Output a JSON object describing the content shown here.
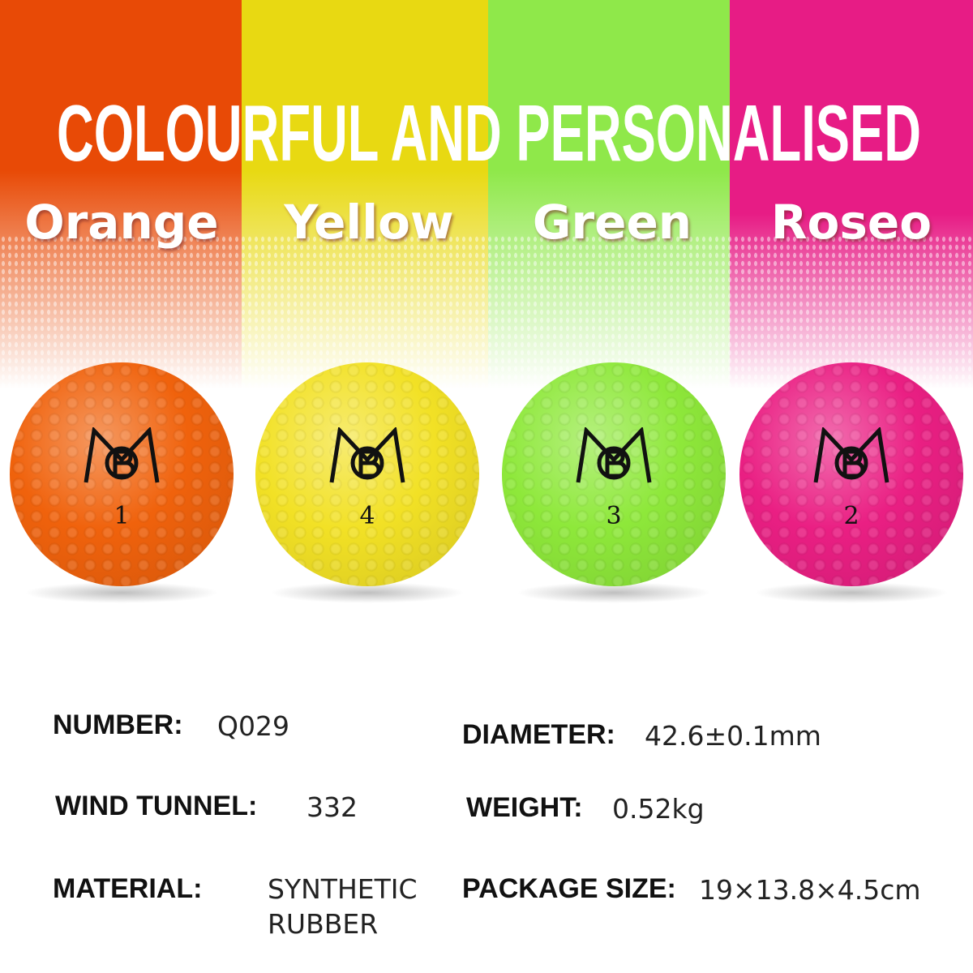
{
  "banner": {
    "title": "COLOURFUL AND PERSONALISED",
    "colors": [
      {
        "name": "Orange",
        "hex": "#e84a06"
      },
      {
        "name": "Yellow",
        "hex": "#e8d912"
      },
      {
        "name": "Green",
        "hex": "#8fe84a"
      },
      {
        "name": "Roseo",
        "hex": "#e71c85"
      }
    ]
  },
  "balls": [
    {
      "color": "#f0620c",
      "number": "1"
    },
    {
      "color": "#f2e125",
      "number": "4"
    },
    {
      "color": "#8ee83a",
      "number": "3"
    },
    {
      "color": "#ea1f83",
      "number": "2"
    }
  ],
  "logo": {
    "text": "MCB",
    "icon": "cat-monogram-logo"
  },
  "specs": {
    "number": {
      "label": "NUMBER:",
      "value": "Q029"
    },
    "diameter": {
      "label": "DIAMETER:",
      "value": "42.6±0.1mm"
    },
    "wind_tunnel": {
      "label": "WIND TUNNEL:",
      "value": "332"
    },
    "weight": {
      "label": "WEIGHT:",
      "value": "0.52kg"
    },
    "material": {
      "label": "MATERIAL:",
      "value_line1": "SYNTHETIC",
      "value_line2": "RUBBER"
    },
    "package_size": {
      "label": "PACKAGE SIZE:",
      "value": "19×13.8×4.5cm"
    }
  }
}
